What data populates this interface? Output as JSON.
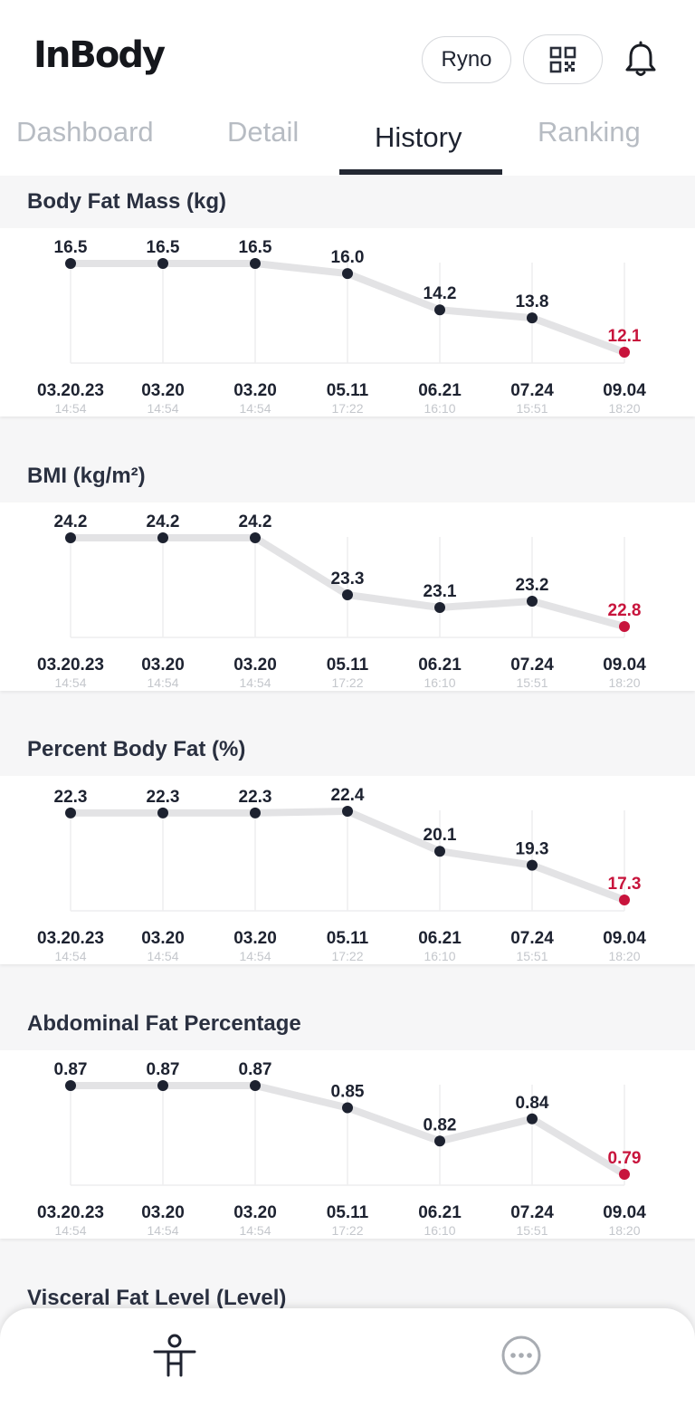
{
  "header": {
    "logo": "InBody",
    "user_name": "Ryno",
    "qr_icon": "qr-code-icon",
    "bell_icon": "bell-icon"
  },
  "tabs": [
    {
      "label": "Dashboard",
      "active": false
    },
    {
      "label": "Detail",
      "active": false
    },
    {
      "label": "History",
      "active": true
    },
    {
      "label": "Ranking",
      "active": false
    }
  ],
  "colors": {
    "line": "#e3e3e5",
    "point": "#1d2230",
    "latest": "#c8143c",
    "grid": "#eeeeef"
  },
  "x_axis": {
    "dates": [
      "03.20.23",
      "03.20",
      "03.20",
      "05.11",
      "06.21",
      "07.24",
      "09.04"
    ],
    "times": [
      "14:54",
      "14:54",
      "14:54",
      "17:22",
      "16:10",
      "15:51",
      "18:20"
    ]
  },
  "sections": [
    {
      "title": "Body Fat Mass (kg)",
      "values": [
        "16.5",
        "16.5",
        "16.5",
        "16.0",
        "14.2",
        "13.8",
        "12.1"
      ]
    },
    {
      "title": "BMI (kg/m²)",
      "values": [
        "24.2",
        "24.2",
        "24.2",
        "23.3",
        "23.1",
        "23.2",
        "22.8"
      ]
    },
    {
      "title": "Percent Body Fat (%)",
      "values": [
        "22.3",
        "22.3",
        "22.3",
        "22.4",
        "20.1",
        "19.3",
        "17.3"
      ]
    },
    {
      "title": "Abdominal Fat Percentage",
      "values": [
        "0.87",
        "0.87",
        "0.87",
        "0.85",
        "0.82",
        "0.84",
        "0.79"
      ]
    },
    {
      "title": "Visceral Fat Level (Level)",
      "values": []
    }
  ],
  "bottom_nav": [
    {
      "icon": "body-figure-icon"
    },
    {
      "icon": "more-icon"
    }
  ]
}
